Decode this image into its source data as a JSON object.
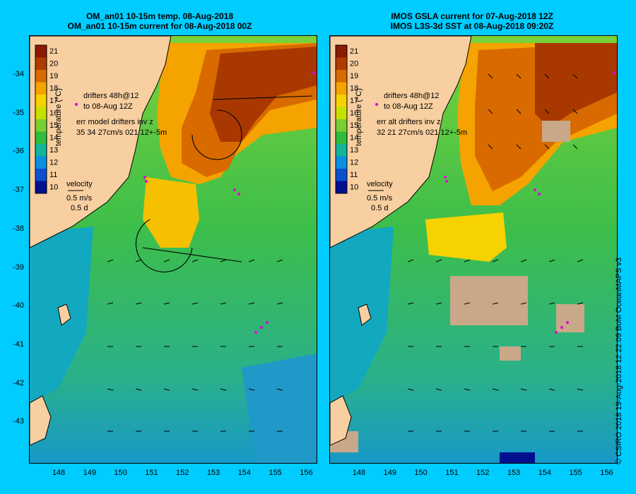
{
  "left_panel": {
    "title_line1": "OM_an01 10-15m temp. 08-Aug-2018",
    "title_line2": "OM_an01 10-15m current for 08-Aug-2018 00Z",
    "drifters_line1": "drifters 48h@12",
    "drifters_line2": "to 08-Aug 12Z",
    "err_line1": "err model drifters inv z",
    "err_line2": "35 34 27cm/s 021 12+-5m"
  },
  "right_panel": {
    "title_line1": "IMOS GSLA current for 07-Aug-2018 12Z",
    "title_line2": "IMOS L3S-3d SST at 08-Aug-2018 09:20Z",
    "drifters_line1": "drifters 48h@12",
    "drifters_line2": "to 08-Aug 12Z",
    "err_line1": "err alt drifters inv z",
    "err_line2": "32 21 27cm/s 021 12+-5m"
  },
  "velocity_legend": {
    "label": "velocity",
    "speed": "0.5 m/s",
    "duration": "0.5 d"
  },
  "colorbar": {
    "label": "temperature (°C)",
    "ticks": [
      "21",
      "20",
      "19",
      "18",
      "17",
      "16",
      "15",
      "14",
      "13",
      "12",
      "11",
      "10"
    ],
    "colors": [
      "#8B1A00",
      "#B03C00",
      "#D86A00",
      "#F5A300",
      "#F5D200",
      "#C8E000",
      "#78D030",
      "#2EBE3C",
      "#12B49A",
      "#0A90E0",
      "#0A50D0",
      "#00108E"
    ]
  },
  "y_axis_labels": [
    "-34",
    "-35",
    "-36",
    "-37",
    "-38",
    "-39",
    "-40",
    "-41",
    "-42",
    "-43"
  ],
  "x_axis_labels": [
    "148",
    "149",
    "150",
    "151",
    "152",
    "153",
    "154",
    "155",
    "156"
  ],
  "credit": "© CSIRO 2018   19-Aug-2018 12:22:09 BoM OceanMAPS v3",
  "colors": {
    "background": "#00CCFF",
    "land": "#F8CFA0",
    "drifter": "#E000E0"
  }
}
